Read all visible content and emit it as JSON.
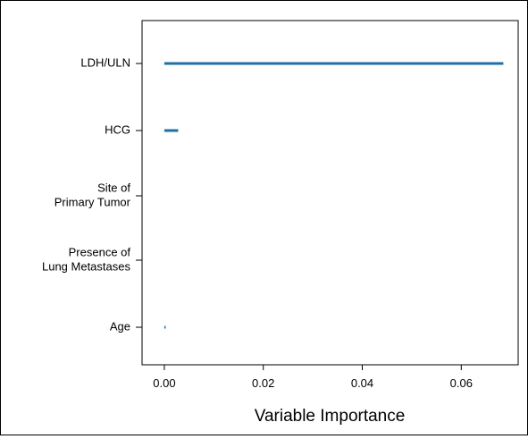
{
  "chart_data": {
    "type": "bar",
    "orientation": "horizontal",
    "title": "",
    "xlabel": "Variable Importance",
    "ylabel": "",
    "categories": [
      [
        "LDH/ULN"
      ],
      [
        "HCG"
      ],
      [
        "Site of",
        "Primary Tumor"
      ],
      [
        "Presence of",
        "Lung Metastases"
      ],
      [
        "Age"
      ]
    ],
    "values": [
      0.0685,
      0.0028,
      0.0,
      0.0,
      0.0002
    ],
    "xlim": [
      -0.0045,
      0.0715
    ],
    "xticks": [
      "0.00",
      "0.02",
      "0.04",
      "0.06"
    ],
    "xtick_values": [
      0.0,
      0.02,
      0.04,
      0.06
    ],
    "bar_color": "#1f6fa6",
    "grid": false,
    "legend": "none"
  }
}
